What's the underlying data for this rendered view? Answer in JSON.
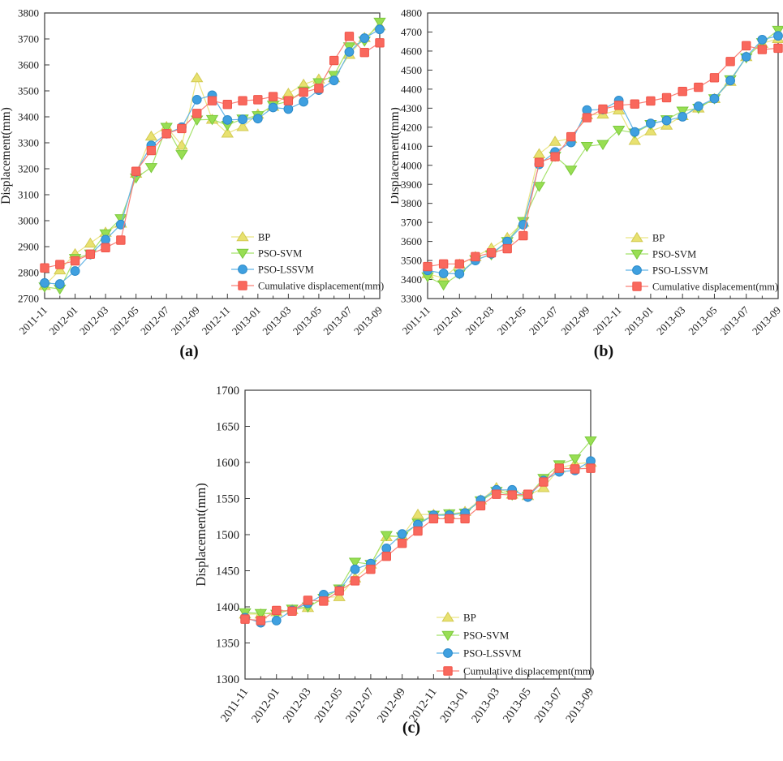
{
  "figure": {
    "background": "#ffffff",
    "axis_color": "#3a3a3a",
    "text_color": "#1c1c1c"
  },
  "chart_data": [
    {
      "type": "line",
      "caption": "(a)",
      "ylabel": "Displacement(mm)",
      "ylim": [
        2700,
        3800
      ],
      "ytick_step": 100,
      "grid": false,
      "legend_position": "inside lower right",
      "categories": [
        "2011-11",
        "2011-12",
        "2012-01",
        "2012-02",
        "2012-03",
        "2012-04",
        "2012-05",
        "2012-06",
        "2012-07",
        "2012-08",
        "2012-09",
        "2012-10",
        "2012-11",
        "2012-12",
        "2013-01",
        "2013-02",
        "2013-03",
        "2013-04",
        "2013-05",
        "2013-06",
        "2013-07",
        "2013-08",
        "2013-09"
      ],
      "xtick_labels": [
        "2011-11",
        "2012-01",
        "2012-03",
        "2012-05",
        "2012-07",
        "2012-09",
        "2012-11",
        "2013-01",
        "2013-03",
        "2013-05",
        "2013-07",
        "2013-09"
      ],
      "series": [
        {
          "name": "BP",
          "marker": "triangle-up",
          "color": "#e8e170",
          "edge": "#d2ca52",
          "line": "#eae583",
          "values": [
            2750,
            2810,
            2872,
            2913,
            2955,
            2990,
            3182,
            3325,
            3362,
            3290,
            3550,
            3390,
            3337,
            3362,
            3410,
            3440,
            3490,
            3525,
            3545,
            3550,
            3640,
            3705,
            3750
          ]
        },
        {
          "name": "PSO-SVM",
          "marker": "triangle-down",
          "color": "#98de53",
          "edge": "#7ac93c",
          "line": "#a5e26b",
          "values": [
            2745,
            2737,
            2855,
            2872,
            2950,
            3008,
            3165,
            3205,
            3360,
            3255,
            3388,
            3390,
            3368,
            3392,
            3405,
            3445,
            3460,
            3500,
            3532,
            3560,
            3670,
            3692,
            3765
          ]
        },
        {
          "name": "PSO-LSSVM",
          "marker": "circle",
          "color": "#3fa0e0",
          "edge": "#2d8bc9",
          "line": "#62b4e6",
          "values": [
            2760,
            2756,
            2806,
            2870,
            2927,
            2985,
            3188,
            3290,
            3335,
            3360,
            3466,
            3483,
            3388,
            3390,
            3393,
            3436,
            3430,
            3458,
            3503,
            3540,
            3650,
            3703,
            3737
          ]
        },
        {
          "name": "Cumulative displacement(mm)",
          "marker": "square",
          "color": "#f9685d",
          "edge": "#f05449",
          "line": "#f98077",
          "values": [
            2818,
            2831,
            2845,
            2871,
            2896,
            2925,
            3190,
            3270,
            3335,
            3355,
            3413,
            3462,
            3448,
            3462,
            3466,
            3478,
            3462,
            3495,
            3510,
            3617,
            3710,
            3648,
            3685
          ]
        }
      ]
    },
    {
      "type": "line",
      "caption": "(b)",
      "ylabel": "Displacement(mm)",
      "ylim": [
        3300,
        4800
      ],
      "ytick_step": 100,
      "grid": false,
      "legend_position": "inside lower right",
      "categories": [
        "2011-11",
        "2011-12",
        "2012-01",
        "2012-02",
        "2012-03",
        "2012-04",
        "2012-05",
        "2012-06",
        "2012-07",
        "2012-08",
        "2012-09",
        "2012-10",
        "2012-11",
        "2012-12",
        "2013-01",
        "2013-02",
        "2013-03",
        "2013-04",
        "2013-05",
        "2013-06",
        "2013-07",
        "2013-08",
        "2013-09"
      ],
      "xtick_labels": [
        "2011-11",
        "2012-01",
        "2012-03",
        "2012-05",
        "2012-07",
        "2012-09",
        "2012-11",
        "2013-01",
        "2013-03",
        "2013-05",
        "2013-07",
        "2013-09"
      ],
      "series": [
        {
          "name": "BP",
          "marker": "triangle-up",
          "color": "#e8e170",
          "edge": "#d2ca52",
          "line": "#eae583",
          "values": [
            3430,
            3408,
            3480,
            3520,
            3565,
            3620,
            3700,
            4060,
            4125,
            4140,
            4265,
            4268,
            4290,
            4130,
            4180,
            4210,
            4260,
            4300,
            4350,
            4440,
            4570,
            4640,
            4665
          ]
        },
        {
          "name": "PSO-SVM",
          "marker": "triangle-down",
          "color": "#98de53",
          "edge": "#7ac93c",
          "line": "#a5e26b",
          "values": [
            3415,
            3372,
            3430,
            3505,
            3530,
            3600,
            3705,
            3890,
            4048,
            3975,
            4100,
            4110,
            4185,
            4170,
            4215,
            4240,
            4285,
            4300,
            4350,
            4450,
            4565,
            4645,
            4710
          ]
        },
        {
          "name": "PSO-LSSVM",
          "marker": "circle",
          "color": "#3fa0e0",
          "edge": "#2d8bc9",
          "line": "#62b4e6",
          "values": [
            3448,
            3432,
            3430,
            3500,
            3535,
            3600,
            3688,
            4005,
            4070,
            4120,
            4290,
            4293,
            4340,
            4175,
            4220,
            4235,
            4255,
            4310,
            4350,
            4445,
            4570,
            4660,
            4680
          ]
        },
        {
          "name": "Cumulative displacement(mm)",
          "marker": "square",
          "color": "#f9685d",
          "edge": "#f05449",
          "line": "#f98077",
          "values": [
            3468,
            3482,
            3482,
            3520,
            3540,
            3562,
            3630,
            4015,
            4045,
            4150,
            4250,
            4295,
            4315,
            4322,
            4338,
            4355,
            4388,
            4410,
            4460,
            4545,
            4628,
            4608,
            4615
          ]
        }
      ]
    },
    {
      "type": "line",
      "caption": "(c)",
      "ylabel": "Displacement(mm)",
      "ylim": [
        1300,
        1700
      ],
      "ytick_step": 50,
      "grid": false,
      "legend_position": "inside lower right",
      "categories": [
        "2011-11",
        "2011-12",
        "2012-01",
        "2012-02",
        "2012-03",
        "2012-04",
        "2012-05",
        "2012-06",
        "2012-07",
        "2012-08",
        "2012-09",
        "2012-10",
        "2012-11",
        "2012-12",
        "2013-01",
        "2013-02",
        "2013-03",
        "2013-04",
        "2013-05",
        "2013-06",
        "2013-07",
        "2013-08",
        "2013-09"
      ],
      "xtick_labels": [
        "2011-11",
        "2012-01",
        "2012-03",
        "2012-05",
        "2012-07",
        "2012-09",
        "2012-11",
        "2013-01",
        "2013-03",
        "2013-05",
        "2013-07",
        "2013-09"
      ],
      "series": [
        {
          "name": "BP",
          "marker": "triangle-up",
          "color": "#e8e170",
          "edge": "#d2ca52",
          "line": "#eae583",
          "values": [
            1390,
            1390,
            1393,
            1396,
            1399,
            1413,
            1414,
            1440,
            1459,
            1497,
            1498,
            1528,
            1528,
            1528,
            1532,
            1548,
            1565,
            1556,
            1554,
            1565,
            1592,
            1598,
            1600
          ]
        },
        {
          "name": "PSO-SVM",
          "marker": "triangle-down",
          "color": "#98de53",
          "edge": "#7ac93c",
          "line": "#a5e26b",
          "values": [
            1392,
            1391,
            1390,
            1397,
            1400,
            1412,
            1425,
            1462,
            1459,
            1499,
            1497,
            1516,
            1527,
            1529,
            1530,
            1547,
            1560,
            1555,
            1553,
            1578,
            1597,
            1605,
            1630
          ]
        },
        {
          "name": "PSO-LSSVM",
          "marker": "circle",
          "color": "#3fa0e0",
          "edge": "#2d8bc9",
          "line": "#62b4e6",
          "values": [
            1385,
            1378,
            1381,
            1395,
            1405,
            1417,
            1423,
            1452,
            1460,
            1481,
            1501,
            1514,
            1527,
            1527,
            1530,
            1548,
            1562,
            1562,
            1552,
            1575,
            1587,
            1589,
            1602
          ]
        },
        {
          "name": "Cumulative displacement(mm)",
          "marker": "square",
          "color": "#f9685d",
          "edge": "#f05449",
          "line": "#f98077",
          "values": [
            1383,
            1381,
            1395,
            1394,
            1409,
            1408,
            1422,
            1436,
            1452,
            1470,
            1488,
            1505,
            1522,
            1522,
            1522,
            1540,
            1556,
            1555,
            1556,
            1573,
            1592,
            1591,
            1592
          ]
        }
      ]
    }
  ]
}
